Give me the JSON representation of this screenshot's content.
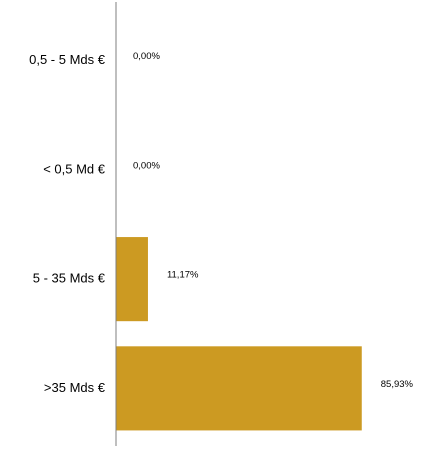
{
  "chart_data": {
    "type": "bar",
    "orientation": "horizontal",
    "categories": [
      "0,5 - 5 Mds €",
      "< 0,5 Md €",
      "5 - 35 Mds €",
      ">35 Mds €"
    ],
    "values": [
      0.0,
      0.0,
      11.17,
      85.93
    ],
    "value_labels": [
      "0,00%",
      "0,00%",
      "11,17%",
      "85,93%"
    ],
    "bar_color": "#cc9a22",
    "axis_color": "#7f7f7f",
    "xlim": [
      0,
      100
    ],
    "title": "",
    "xlabel": "",
    "ylabel": "",
    "grid": false,
    "legend": "none"
  }
}
